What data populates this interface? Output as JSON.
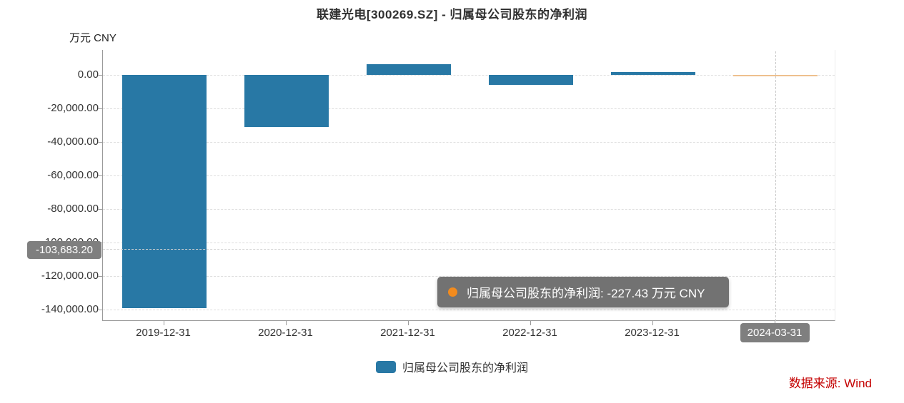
{
  "title": "联建光电[300269.SZ] - 归属母公司股东的净利润",
  "y_axis": {
    "unit": "万元  CNY",
    "ticks": [
      "0.00",
      "-20,000.00",
      "-40,000.00",
      "-60,000.00",
      "-80,000.00",
      "-100,000.00",
      "-120,000.00",
      "-140,000.00"
    ]
  },
  "x_axis": {
    "categories": [
      "2019-12-31",
      "2020-12-31",
      "2021-12-31",
      "2022-12-31",
      "2023-12-31",
      "2024-03-31"
    ],
    "hovered_category": "2024-03-31"
  },
  "marker": {
    "label": "-103,683.20",
    "value": -103683.2
  },
  "tooltip": {
    "text": "归属母公司股东的净利润: -227.43  万元  CNY",
    "series": "归属母公司股东的净利润",
    "value": "-227.43",
    "unit": "万元  CNY",
    "dot_color": "#f28b1e"
  },
  "legend": {
    "label": "归属母公司股东的净利润",
    "color": "#2878a5"
  },
  "source": {
    "text": "数据来源: Wind",
    "color": "#c40000"
  },
  "colors": {
    "bar_blue": "#2878a5",
    "bar_orange": "#eec08e",
    "badge_gray": "#7f7f7f",
    "grid_gray": "#dedede",
    "axis_gray": "#9a9a9a"
  },
  "chart_data": {
    "type": "bar",
    "title": "联建光电[300269.SZ] - 归属母公司股东的净利润",
    "ylabel": "万元 CNY",
    "categories": [
      "2019-12-31",
      "2020-12-31",
      "2021-12-31",
      "2022-12-31",
      "2023-12-31",
      "2024-03-31"
    ],
    "series": [
      {
        "name": "归属母公司股东的净利润",
        "values": [
          -139000,
          -31000,
          6300,
          -5800,
          1800,
          -227.43
        ]
      }
    ],
    "bar_colors": [
      "#2878a5",
      "#2878a5",
      "#2878a5",
      "#2878a5",
      "#2878a5",
      "#eec08e"
    ],
    "ylim": [
      -150000,
      15000
    ],
    "y_tick_step": 20000,
    "grid": true,
    "legend_position": "bottom",
    "annotations": {
      "hline_value": -103683.2,
      "hline_label": "-103,683.20",
      "hover_category": "2024-03-31",
      "hover_value": -227.43
    }
  }
}
